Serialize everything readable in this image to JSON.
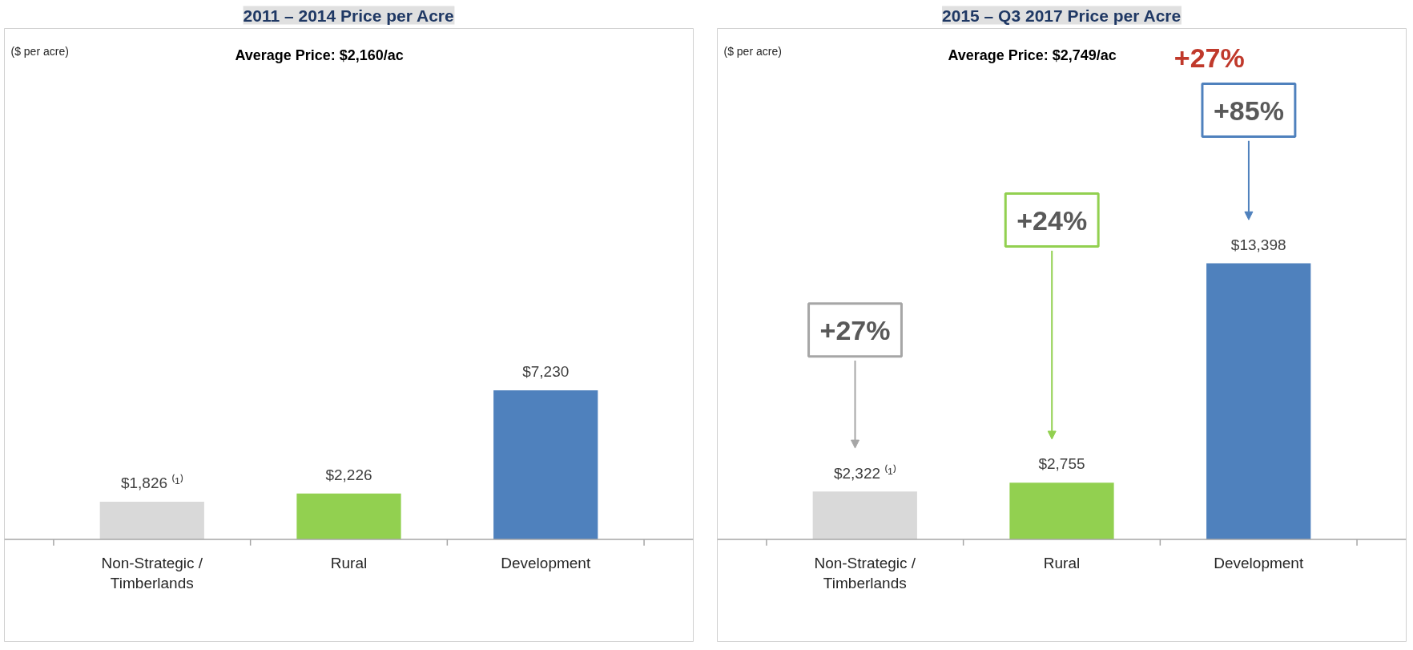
{
  "chart_data": [
    {
      "type": "bar",
      "title": "2011 – 2014 Price per Acre",
      "categories": [
        "Non-Strategic / Timberlands",
        "Rural",
        "Development"
      ],
      "values": [
        1826,
        2226,
        7230
      ],
      "colors": [
        "#d9d9d9",
        "#92d050",
        "#4f81bd"
      ],
      "value_labels": [
        "$1,826 ⁽¹⁾",
        "$2,226",
        "$7,230"
      ],
      "grid": false,
      "tick_labels": "x",
      "annotations": [
        "($ per acre)",
        "Average Price: $2,160/ac"
      ]
    },
    {
      "type": "bar",
      "title": "2015 – Q3 2017 Price per Acre",
      "categories": [
        "Non-Strategic / Timberlands",
        "Rural",
        "Development"
      ],
      "values": [
        2322,
        2755,
        13398
      ],
      "colors": [
        "#d9d9d9",
        "#92d050",
        "#4f81bd"
      ],
      "value_labels": [
        "$2,322 ⁽¹⁾",
        "$2,755",
        "$13,398"
      ],
      "grid": false,
      "tick_labels": "x",
      "annotations": [
        "($ per acre)",
        "Average Price: $2,749/ac",
        "+27%",
        "+27%",
        "+24%",
        "+85%"
      ]
    }
  ]
}
